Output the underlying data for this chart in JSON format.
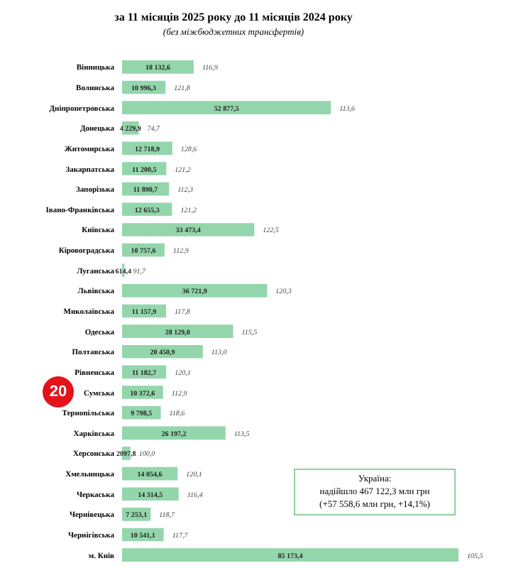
{
  "chart_data": {
    "type": "bar",
    "orientation": "horizontal",
    "title": "за 11 місяців 2025 року до 11 місяців 2024 року",
    "subtitle": "(без міжбюджетних трансфертів)",
    "categories": [
      "Вінницька",
      "Волинська",
      "Дніпропетровська",
      "Донецька",
      "Житомирська",
      "Закарпатська",
      "Запорізька",
      "Івано-Франківська",
      "Київська",
      "Кіровоградська",
      "Луганська",
      "Львівська",
      "Миколаївська",
      "Одеська",
      "Полтавська",
      "Рівненська",
      "Сумська",
      "Тернопільська",
      "Харківська",
      "Херсонська",
      "Хмельницька",
      "Черкаська",
      "Чернівецька",
      "Чернігівська",
      "м. Київ"
    ],
    "values": [
      18132.6,
      10996.3,
      52877.5,
      4229.9,
      12718.9,
      11200.5,
      11890.7,
      12655.3,
      33473.4,
      10757.6,
      614.4,
      36721.9,
      11157.9,
      28129.0,
      20450.9,
      11182.7,
      10372.6,
      9798.5,
      26197.2,
      2097.8,
      14054.6,
      14314.5,
      7253.1,
      10541.1,
      85173.4
    ],
    "value_labels": [
      "18 132,6",
      "10 996,3",
      "52 877,5",
      "4 229,9",
      "12 718,9",
      "11 200,5",
      "11 890,7",
      "12 655,3",
      "33 473,4",
      "10 757,6",
      "614,4",
      "36 721,9",
      "11 157,9",
      "28 129,0",
      "20 450,9",
      "11 182,7",
      "10 372,6",
      "9 798,5",
      "26 197,2",
      "2097,8",
      "14 054,6",
      "14 314,5",
      "7 253,1",
      "10 541,1",
      "85 173,4"
    ],
    "color": "#93d6ab",
    "annotations": [
      "Україна:\nнадійшло 467 122,3 млн грн\n(+57 558,6 млн грн, +14,1%)",
      "20",
      {
        "text": "116,9",
        "y": "Вінницька",
        "x": 18132.6
      },
      {
        "text": "121,8",
        "y": "Волинська",
        "x": 10996.3
      },
      {
        "text": "113,6",
        "y": "Дніпропетровська",
        "x": 52877.5
      },
      {
        "text": "74,7",
        "y": "Донецька",
        "x": 4229.9
      },
      {
        "text": "128,6",
        "y": "Житомирська",
        "x": 12718.9
      },
      {
        "text": "121,2",
        "y": "Закарпатська",
        "x": 11200.5
      },
      {
        "text": "112,3",
        "y": "Запорізька",
        "x": 11890.7
      },
      {
        "text": "121,2",
        "y": "Івано-Франківська",
        "x": 12655.3
      },
      {
        "text": "122,5",
        "y": "Київська",
        "x": 33473.4
      },
      {
        "text": "112,9",
        "y": "Кіровоградська",
        "x": 10757.6
      },
      {
        "text": "91,7",
        "y": "Луганська",
        "x": 614.4
      },
      {
        "text": "120,3",
        "y": "Львівська",
        "x": 36721.9
      },
      {
        "text": "117,8",
        "y": "Миколаївська",
        "x": 11157.9
      },
      {
        "text": "115,5",
        "y": "Одеська",
        "x": 28129.0
      },
      {
        "text": "113,0",
        "y": "Полтавська",
        "x": 20450.9
      },
      {
        "text": "120,1",
        "y": "Рівненська",
        "x": 11182.7
      },
      {
        "text": "112,9",
        "y": "Сумська",
        "x": 10372.6
      },
      {
        "text": "118,6",
        "y": "Тернопільська",
        "x": 9798.5
      },
      {
        "text": "113,5",
        "y": "Харківська",
        "x": 26197.2
      },
      {
        "text": "100,0",
        "y": "Херсонська",
        "x": 2097.8
      },
      {
        "text": "120,1",
        "y": "Хмельницька",
        "x": 14054.6
      },
      {
        "text": "116,4",
        "y": "Черкаська",
        "x": 14314.5
      },
      {
        "text": "118,7",
        "y": "Чернівецька",
        "x": 7253.1
      },
      {
        "text": "117,7",
        "y": "Чернігівська",
        "x": 10541.1
      },
      {
        "text": "105,5",
        "y": "м. Київ",
        "x": 85173.4
      }
    ]
  }
}
